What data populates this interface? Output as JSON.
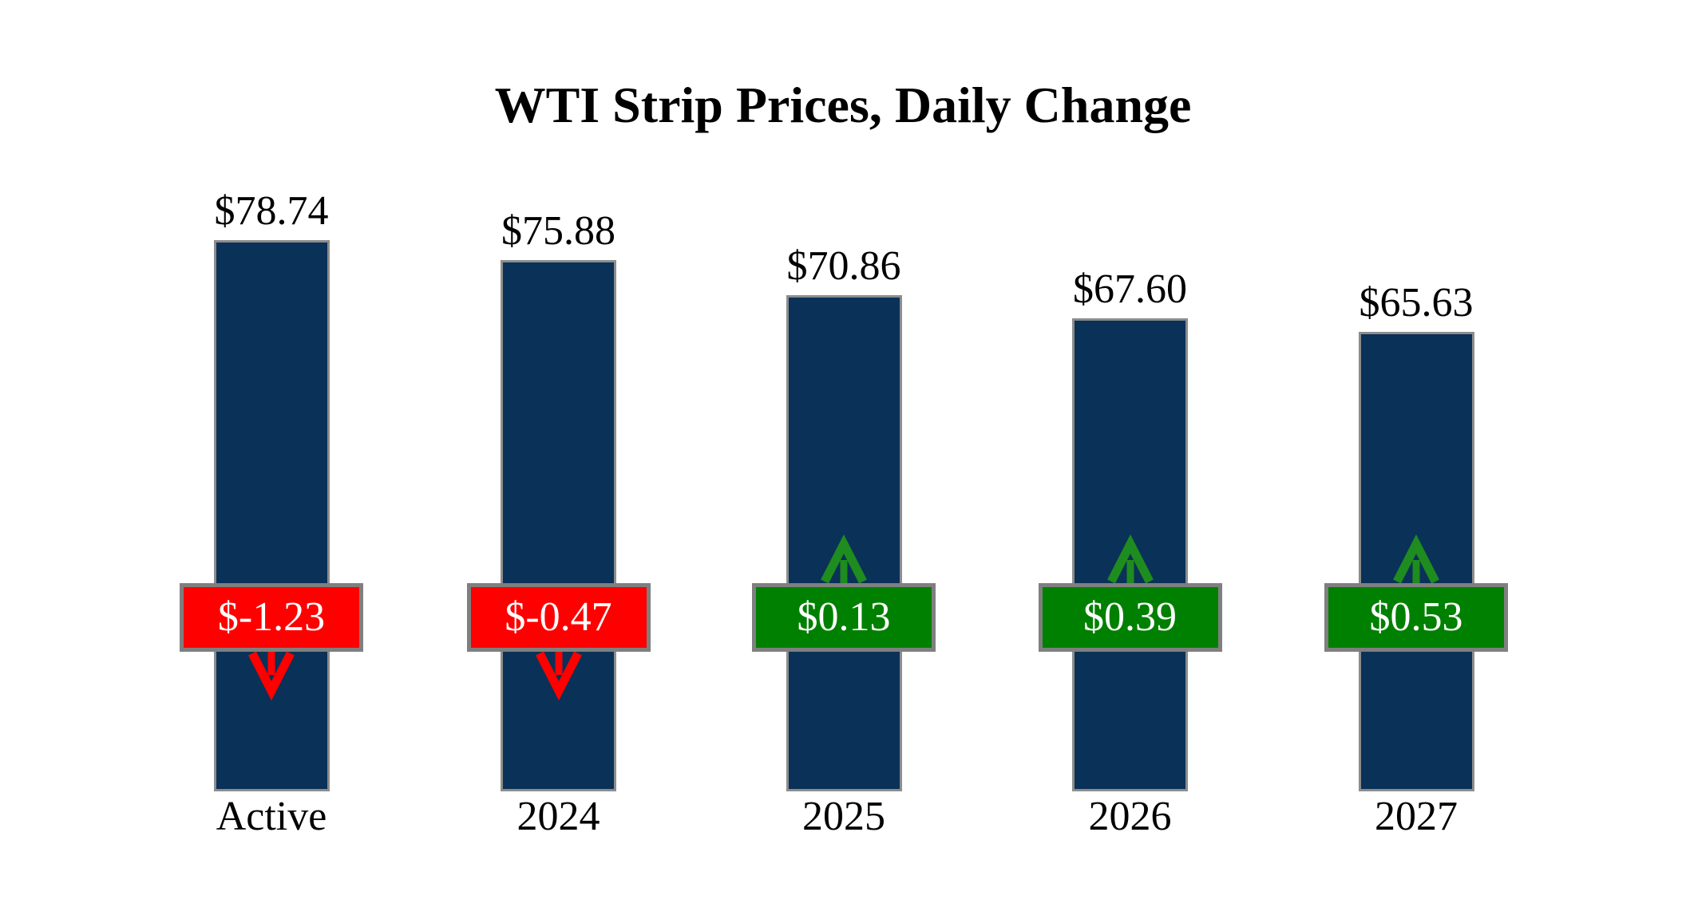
{
  "chart_data": {
    "type": "bar",
    "title": "WTI Strip Prices, Daily Change",
    "categories": [
      "Active",
      "2024",
      "2025",
      "2026",
      "2027"
    ],
    "values": [
      78.74,
      75.88,
      70.86,
      67.6,
      65.63
    ],
    "value_labels": [
      "$78.74",
      "$75.88",
      "$70.86",
      "$67.60",
      "$65.63"
    ],
    "changes": [
      -1.23,
      -0.47,
      0.13,
      0.39,
      0.53
    ],
    "change_labels": [
      "$-1.23",
      "$-0.47",
      "$0.13",
      "$0.39",
      "$0.53"
    ],
    "change_directions": [
      "down",
      "down",
      "up",
      "up",
      "up"
    ],
    "xlabel": "",
    "ylabel": "",
    "ylim": [
      0,
      80
    ],
    "grid": false,
    "legend": "none",
    "colors": {
      "bar_fill": "#0a3157",
      "bar_border": "#8d8d8d",
      "badge_border": "#7f7f7f",
      "negative_badge": "#fe0000",
      "positive_badge": "#008000",
      "arrow_down": "#fe0000",
      "arrow_up": "#1e8c1e",
      "badge_text": "#ffffff",
      "text": "#000000",
      "background": "#ffffff"
    }
  }
}
